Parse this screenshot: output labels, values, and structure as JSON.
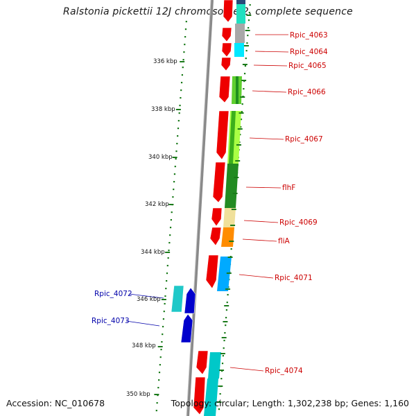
{
  "title": "Ralstonia pickettii 12J chromosome 2, complete sequence",
  "accession": "Accession: NC_010678",
  "topology": "Topology: circular; Length: 1,302,238 bp; Genes: 1,160",
  "ruler": {
    "unit": "kbp",
    "labels": [
      "336 kbp",
      "338 kbp",
      "340 kbp",
      "342 kbp",
      "344 kbp",
      "346 kbp",
      "348 kbp",
      "350 kbp"
    ]
  },
  "genes_right": [
    {
      "name": "Rpic_4063",
      "color": "#cc0000"
    },
    {
      "name": "Rpic_4064",
      "color": "#cc0000"
    },
    {
      "name": "Rpic_4065",
      "color": "#cc0000"
    },
    {
      "name": "Rpic_4066",
      "color": "#cc0000"
    },
    {
      "name": "Rpic_4067",
      "color": "#cc0000"
    },
    {
      "name": "flhF",
      "color": "#cc0000"
    },
    {
      "name": "Rpic_4069",
      "color": "#cc0000"
    },
    {
      "name": "fliA",
      "color": "#cc0000"
    },
    {
      "name": "Rpic_4071",
      "color": "#cc0000"
    },
    {
      "name": "Rpic_4074",
      "color": "#cc0000"
    }
  ],
  "genes_left": [
    {
      "name": "Rpic_4072",
      "color": "#0000aa"
    },
    {
      "name": "Rpic_4073",
      "color": "#0000aa"
    }
  ],
  "colors": {
    "forward_cds": "#ee0000",
    "reverse_cds": "#0000cc",
    "backbone": "#8a8a8a",
    "ruler": "#1a7a1a",
    "label_forward": "#cc0000",
    "label_reverse": "#0000aa"
  }
}
